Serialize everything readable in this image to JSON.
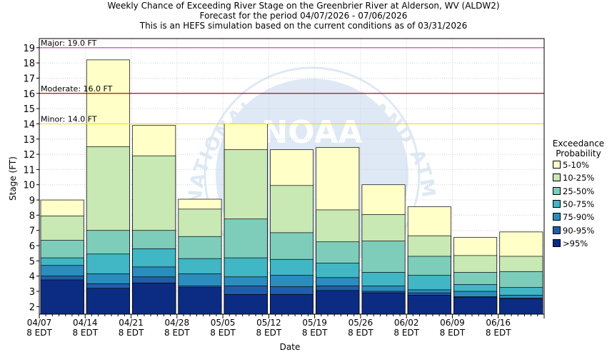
{
  "chart_data": {
    "type": "bar",
    "title_lines": [
      "Weekly Chance of Exceeding River Stage on the Greenbrier River at Alderson, WV (ALDW2)",
      "Forecast for the period 04/07/2026 - 07/06/2026",
      "This is an HEFS simulation based on the current conditions as of 03/31/2026"
    ],
    "xlabel": "Date",
    "ylabel": "Stage (FT)",
    "ylim": [
      1.5,
      19.6
    ],
    "yticks": [
      2,
      3,
      4,
      5,
      6,
      7,
      8,
      9,
      10,
      11,
      12,
      13,
      14,
      15,
      16,
      17,
      18,
      19
    ],
    "x_tick_labels": [
      {
        "date": "04/07",
        "time": "8 EDT"
      },
      {
        "date": "04/14",
        "time": "8 EDT"
      },
      {
        "date": "04/21",
        "time": "8 EDT"
      },
      {
        "date": "04/28",
        "time": "8 EDT"
      },
      {
        "date": "05/05",
        "time": "8 EDT"
      },
      {
        "date": "05/12",
        "time": "8 EDT"
      },
      {
        "date": "05/19",
        "time": "8 EDT"
      },
      {
        "date": "05/26",
        "time": "8 EDT"
      },
      {
        "date": "06/02",
        "time": "8 EDT"
      },
      {
        "date": "06/09",
        "time": "8 EDT"
      },
      {
        "date": "06/16",
        "time": "8 EDT"
      }
    ],
    "grid": true,
    "legend_title": [
      "Exceedance",
      "Probability"
    ],
    "legend_placement": "right",
    "flood_levels": [
      {
        "label": "Major: 19.0 FT",
        "value": 19.0,
        "color": "#cc33cc"
      },
      {
        "label": "Moderate: 16.0 FT",
        "value": 16.0,
        "color": "#cc0000"
      },
      {
        "label": "Minor: 14.0 FT",
        "value": 14.0,
        "color": "#e6e600"
      }
    ],
    "series": [
      {
        "name": "5-10%",
        "color": "#ffffc8",
        "values": [
          9.0,
          18.2,
          13.9,
          9.05,
          14.0,
          12.3,
          12.45,
          10.0,
          8.55,
          6.55,
          6.9
        ]
      },
      {
        "name": "10-25%",
        "color": "#c8e8b4",
        "values": [
          7.95,
          12.5,
          11.9,
          8.4,
          12.3,
          9.95,
          8.35,
          8.05,
          6.65,
          5.35,
          5.3
        ]
      },
      {
        "name": "25-50%",
        "color": "#7ecdbb",
        "values": [
          6.35,
          7.0,
          7.0,
          6.6,
          7.75,
          6.85,
          6.25,
          6.3,
          5.3,
          4.25,
          4.3
        ]
      },
      {
        "name": "50-75%",
        "color": "#41b6c4",
        "values": [
          5.2,
          5.45,
          5.8,
          5.15,
          5.2,
          5.1,
          4.85,
          4.25,
          4.05,
          3.45,
          3.25
        ]
      },
      {
        "name": "75-90%",
        "color": "#2b8cbe",
        "values": [
          4.7,
          4.15,
          4.6,
          4.15,
          3.95,
          4.05,
          3.9,
          3.35,
          3.1,
          3.0,
          2.75
        ]
      },
      {
        "name": "90-95%",
        "color": "#225ea8",
        "values": [
          4.0,
          3.5,
          3.95,
          3.35,
          3.35,
          3.3,
          3.35,
          3.0,
          2.9,
          2.65,
          2.55
        ]
      },
      {
        "name": ">95%",
        "color": "#0c2c84",
        "values": [
          3.75,
          3.2,
          3.55,
          3.25,
          2.8,
          2.8,
          3.05,
          2.9,
          2.75,
          2.6,
          2.5
        ]
      }
    ]
  }
}
